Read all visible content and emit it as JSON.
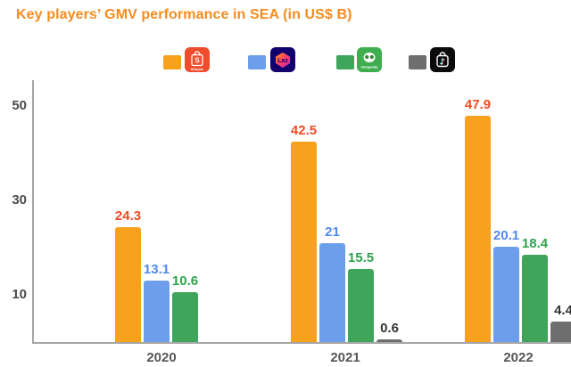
{
  "title": "Key players’ GMV performance in SEA (in US$ B)",
  "legend": {
    "items": [
      {
        "name": "Shopee",
        "swatch_color": "#F7A11C",
        "icon": "shopee-app-icon"
      },
      {
        "name": "Lazada",
        "swatch_color": "#6D9EEB",
        "icon": "lazada-app-icon"
      },
      {
        "name": "Tokopedia",
        "swatch_color": "#3FA55A",
        "icon": "tokopedia-app-icon"
      },
      {
        "name": "TikTok Shop",
        "swatch_color": "#6E6E6E",
        "icon": "tiktok-shop-app-icon"
      }
    ]
  },
  "chart_data": {
    "type": "bar",
    "title": "Key players’ GMV performance in SEA (in US$ B)",
    "categories": [
      "2020",
      "2021",
      "2022"
    ],
    "series": [
      {
        "name": "Shopee",
        "color": "#F7A11C",
        "label_color": "#EF4D23",
        "values": [
          24.3,
          42.5,
          47.9
        ]
      },
      {
        "name": "Lazada",
        "color": "#6D9EEB",
        "label_color": "#5189EA",
        "values": [
          13.1,
          21,
          20.1
        ]
      },
      {
        "name": "Tokopedia",
        "color": "#3FA55A",
        "label_color": "#2FA14E",
        "values": [
          10.6,
          15.5,
          18.4
        ]
      },
      {
        "name": "TikTok Shop",
        "color": "#6E6E6E",
        "label_color": "#333333",
        "values": [
          null,
          0.6,
          4.4
        ]
      }
    ],
    "yticks": [
      10,
      30,
      50
    ],
    "ylim": [
      0,
      55
    ],
    "grid": false,
    "legend_position": "top",
    "value_labels": true
  },
  "colors": {
    "title": "#F68C1E",
    "axis": "#A6A6A6",
    "tick_label": "#4A4A4A",
    "xlabel": "#55565A",
    "background": "#FFFFFF"
  }
}
